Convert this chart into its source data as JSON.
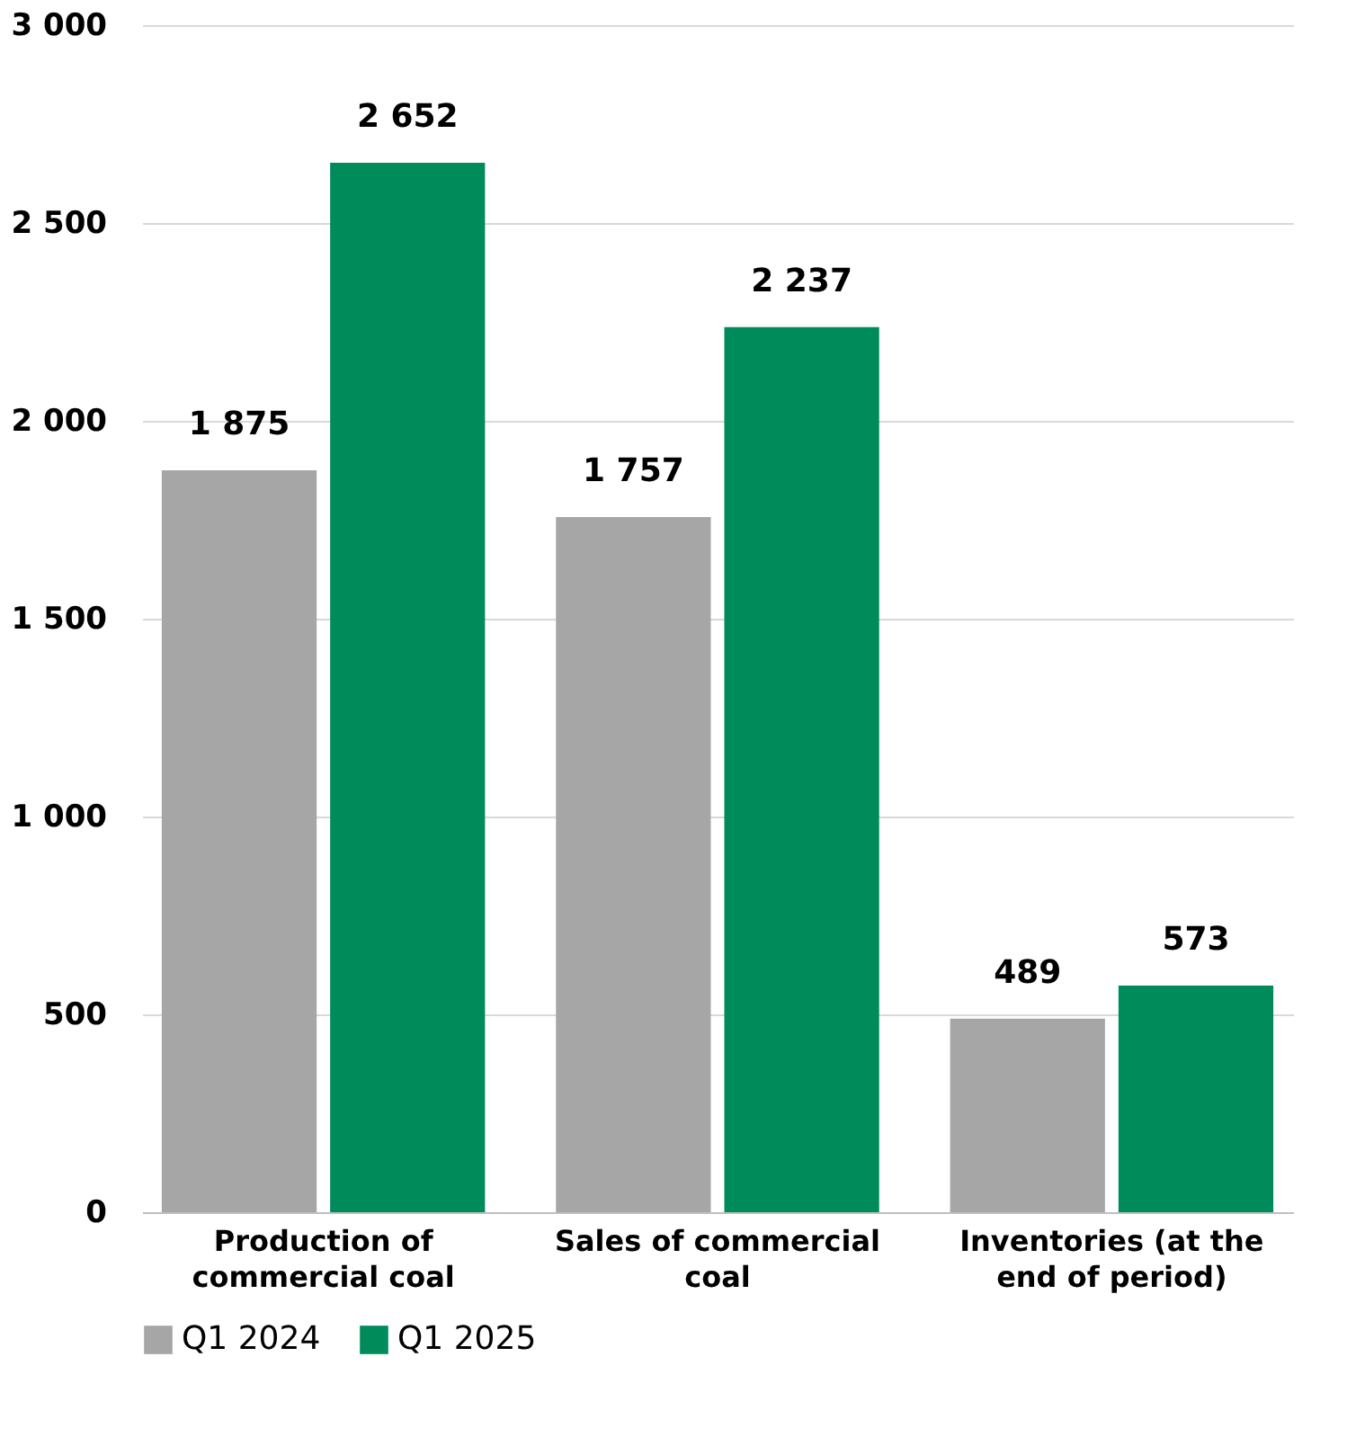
{
  "chart_data": {
    "type": "bar",
    "categories": [
      "Production of commercial coal",
      "Sales of commercial coal",
      "Inventories (at the end of period)"
    ],
    "series": [
      {
        "name": "Q1 2024",
        "color": "#a6a6a6",
        "values": [
          1875,
          1757,
          489
        ],
        "value_labels": [
          "1 875",
          "1 757",
          "489"
        ]
      },
      {
        "name": "Q1 2025",
        "color": "#008c5a",
        "values": [
          2652,
          2237,
          573
        ],
        "value_labels": [
          "2 652",
          "2 237",
          "573"
        ]
      }
    ],
    "ylim": [
      0,
      3000
    ],
    "yticks": [
      {
        "value": 0,
        "label": "0"
      },
      {
        "value": 500,
        "label": "500"
      },
      {
        "value": 1000,
        "label": "1 000"
      },
      {
        "value": 1500,
        "label": "1 500"
      },
      {
        "value": 2000,
        "label": "2 000"
      },
      {
        "value": 2500,
        "label": "2 500"
      },
      {
        "value": 3000,
        "label": "3 000"
      }
    ],
    "grid": "y",
    "legend": "bottom"
  }
}
